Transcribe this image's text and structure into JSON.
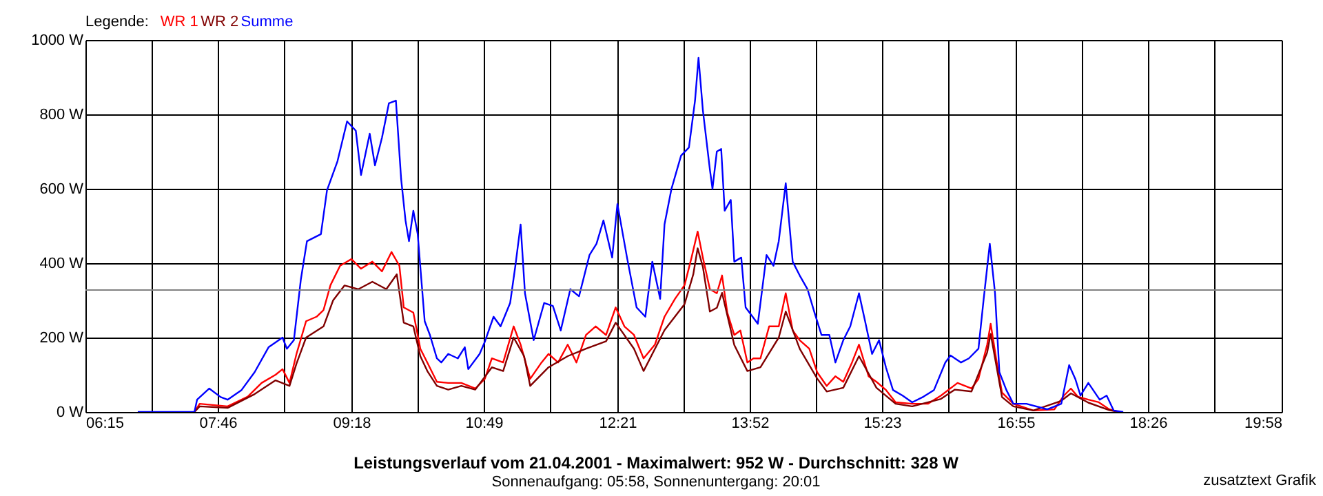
{
  "chart_data": {
    "type": "line",
    "title": "Leistungsverlauf vom 21.04.2001 - Maximalwert: 952 W - Durchschnitt: 328 W",
    "subtitle": "Sonnenaufgang: 05:58, Sonnenuntergang: 20:01",
    "annotations": [
      "zusatztext Grafik"
    ],
    "legend_title": "Legende:",
    "legend": "top left",
    "grid": true,
    "xlim": [
      6.25,
      19.9667
    ],
    "xticks": [
      {
        "value": 6.25,
        "label": "06:15"
      },
      {
        "value": 7.0083,
        "label": null
      },
      {
        "value": 7.7667,
        "label": "07:46"
      },
      {
        "value": 8.5333,
        "label": null
      },
      {
        "value": 9.3,
        "label": "09:18"
      },
      {
        "value": 10.0583,
        "label": null
      },
      {
        "value": 10.8167,
        "label": "10:49"
      },
      {
        "value": 11.5833,
        "label": null
      },
      {
        "value": 12.35,
        "label": "12:21"
      },
      {
        "value": 13.1083,
        "label": null
      },
      {
        "value": 13.8667,
        "label": "13:52"
      },
      {
        "value": 14.625,
        "label": null
      },
      {
        "value": 15.3833,
        "label": "15:23"
      },
      {
        "value": 16.15,
        "label": null
      },
      {
        "value": 16.9167,
        "label": "16:55"
      },
      {
        "value": 17.675,
        "label": null
      },
      {
        "value": 18.4333,
        "label": "18:26"
      },
      {
        "value": 19.2,
        "label": null
      },
      {
        "value": 19.9667,
        "label": "19:58"
      }
    ],
    "ylim": [
      0,
      1000
    ],
    "yticks": [
      {
        "value": 0,
        "label": "0 W"
      },
      {
        "value": 200,
        "label": "200 W"
      },
      {
        "value": 400,
        "label": "400 W"
      },
      {
        "value": 600,
        "label": "600 W"
      },
      {
        "value": 800,
        "label": "800 W"
      },
      {
        "value": 1000,
        "label": "1000 W"
      }
    ],
    "ref_lines": [
      {
        "axis": "y",
        "value": 328,
        "color": "#808080"
      }
    ],
    "series": [
      {
        "name": "WR 1",
        "color": "#ff0000",
        "x": [
          7.5,
          7.56,
          7.88,
          8.11,
          8.27,
          8.43,
          8.51,
          8.59,
          8.67,
          8.78,
          8.9,
          8.98,
          9.06,
          9.17,
          9.3,
          9.41,
          9.54,
          9.65,
          9.76,
          9.85,
          9.9,
          10.01,
          10.09,
          10.17,
          10.28,
          10.41,
          10.56,
          10.72,
          10.83,
          10.91,
          11.04,
          11.16,
          11.24,
          11.35,
          11.48,
          11.56,
          11.67,
          11.78,
          11.88,
          11.99,
          12.1,
          12.22,
          12.33,
          12.43,
          12.54,
          12.65,
          12.78,
          12.89,
          13.01,
          13.12,
          13.2,
          13.27,
          13.33,
          13.41,
          13.49,
          13.55,
          13.61,
          13.69,
          13.76,
          13.84,
          13.91,
          13.99,
          14.09,
          14.2,
          14.28,
          14.36,
          14.44,
          14.55,
          14.64,
          14.75,
          14.85,
          14.94,
          15.04,
          15.12,
          15.23,
          15.32,
          15.43,
          15.54,
          15.73,
          15.91,
          16.06,
          16.25,
          16.41,
          16.49,
          16.59,
          16.63,
          16.7,
          16.76,
          16.89,
          17.12,
          17.36,
          17.47,
          17.55,
          17.63,
          17.75,
          17.87,
          17.99,
          18.1
        ],
        "values": [
          0,
          22,
          15,
          41,
          78,
          100,
          115,
          78,
          156,
          244,
          256,
          274,
          341,
          393,
          411,
          385,
          404,
          378,
          430,
          393,
          281,
          267,
          170,
          133,
          81,
          78,
          78,
          63,
          89,
          144,
          133,
          230,
          181,
          89,
          133,
          156,
          133,
          181,
          133,
          207,
          230,
          207,
          281,
          230,
          207,
          144,
          181,
          256,
          304,
          341,
          415,
          485,
          415,
          330,
          319,
          367,
          267,
          207,
          219,
          133,
          144,
          144,
          230,
          230,
          319,
          219,
          193,
          170,
          107,
          70,
          96,
          81,
          133,
          181,
          96,
          81,
          59,
          26,
          22,
          22,
          44,
          78,
          63,
          89,
          181,
          237,
          133,
          52,
          22,
          4,
          7,
          44,
          63,
          41,
          33,
          26,
          7,
          0
        ]
      },
      {
        "name": "WR 2",
        "color": "#800000",
        "x": [
          7.5,
          7.56,
          7.88,
          8.19,
          8.43,
          8.59,
          8.67,
          8.78,
          8.98,
          9.09,
          9.22,
          9.38,
          9.54,
          9.7,
          9.82,
          9.9,
          10.01,
          10.09,
          10.17,
          10.28,
          10.41,
          10.56,
          10.72,
          10.91,
          11.04,
          11.16,
          11.28,
          11.35,
          11.56,
          11.78,
          11.99,
          12.22,
          12.33,
          12.54,
          12.65,
          12.89,
          13.12,
          13.22,
          13.27,
          13.33,
          13.41,
          13.49,
          13.55,
          13.69,
          13.84,
          13.99,
          14.2,
          14.28,
          14.44,
          14.64,
          14.75,
          14.94,
          15.12,
          15.32,
          15.54,
          15.73,
          16.06,
          16.22,
          16.41,
          16.59,
          16.63,
          16.76,
          16.89,
          17.12,
          17.44,
          17.55,
          17.75,
          17.99,
          18.1
        ],
        "values": [
          0,
          15,
          11,
          48,
          85,
          70,
          130,
          200,
          230,
          300,
          340,
          330,
          350,
          330,
          370,
          240,
          230,
          150,
          110,
          70,
          60,
          70,
          60,
          120,
          110,
          200,
          150,
          70,
          120,
          150,
          170,
          190,
          240,
          170,
          110,
          220,
          290,
          370,
          440,
          390,
          270,
          280,
          320,
          180,
          110,
          120,
          200,
          270,
          170,
          90,
          55,
          65,
          150,
          65,
          22,
          15,
          35,
          60,
          55,
          160,
          210,
          40,
          15,
          4,
          30,
          50,
          25,
          5,
          0
        ]
      },
      {
        "name": "Summe",
        "color": "#0000ff",
        "x": [
          6.85,
          7.5,
          7.53,
          7.67,
          7.8,
          7.88,
          8.04,
          8.19,
          8.35,
          8.51,
          8.56,
          8.64,
          8.72,
          8.79,
          8.95,
          9.02,
          9.14,
          9.25,
          9.35,
          9.41,
          9.51,
          9.57,
          9.65,
          9.73,
          9.81,
          9.87,
          9.92,
          9.96,
          10.01,
          10.06,
          10.14,
          10.2,
          10.28,
          10.33,
          10.41,
          10.52,
          10.6,
          10.64,
          10.77,
          10.83,
          10.93,
          11.01,
          11.12,
          11.18,
          11.24,
          11.29,
          11.39,
          11.51,
          11.61,
          11.7,
          11.81,
          11.91,
          12.03,
          12.11,
          12.19,
          12.29,
          12.35,
          12.46,
          12.57,
          12.67,
          12.75,
          12.84,
          12.89,
          12.97,
          13.08,
          13.17,
          13.24,
          13.28,
          13.33,
          13.41,
          13.44,
          13.49,
          13.54,
          13.58,
          13.65,
          13.69,
          13.77,
          13.82,
          13.9,
          13.96,
          14.06,
          14.14,
          14.2,
          14.28,
          14.36,
          14.44,
          14.53,
          14.61,
          14.69,
          14.78,
          14.85,
          14.94,
          15.02,
          15.12,
          15.19,
          15.27,
          15.35,
          15.43,
          15.51,
          15.62,
          15.73,
          15.86,
          15.98,
          16.11,
          16.17,
          16.29,
          16.38,
          16.49,
          16.55,
          16.62,
          16.68,
          16.73,
          16.81,
          16.89,
          17.04,
          17.28,
          17.44,
          17.53,
          17.6,
          17.66,
          17.75,
          17.88,
          17.96,
          18.04,
          18.15
        ],
        "values": [
          0,
          0,
          33,
          63,
          40,
          33,
          59,
          107,
          174,
          200,
          170,
          193,
          356,
          459,
          478,
          596,
          674,
          781,
          756,
          637,
          748,
          663,
          737,
          830,
          837,
          626,
          515,
          459,
          541,
          478,
          244,
          207,
          144,
          133,
          156,
          144,
          174,
          115,
          156,
          189,
          256,
          230,
          293,
          393,
          504,
          319,
          193,
          293,
          285,
          219,
          330,
          311,
          422,
          452,
          515,
          415,
          559,
          415,
          281,
          256,
          404,
          304,
          504,
          600,
          689,
          711,
          837,
          952,
          811,
          652,
          600,
          700,
          707,
          541,
          570,
          404,
          415,
          281,
          256,
          237,
          422,
          393,
          459,
          615,
          404,
          367,
          330,
          267,
          207,
          207,
          133,
          193,
          230,
          319,
          244,
          156,
          193,
          119,
          59,
          44,
          26,
          41,
          59,
          133,
          152,
          133,
          144,
          170,
          304,
          452,
          319,
          107,
          59,
          22,
          22,
          7,
          22,
          126,
          89,
          44,
          78,
          33,
          44,
          4,
          0
        ]
      }
    ]
  }
}
